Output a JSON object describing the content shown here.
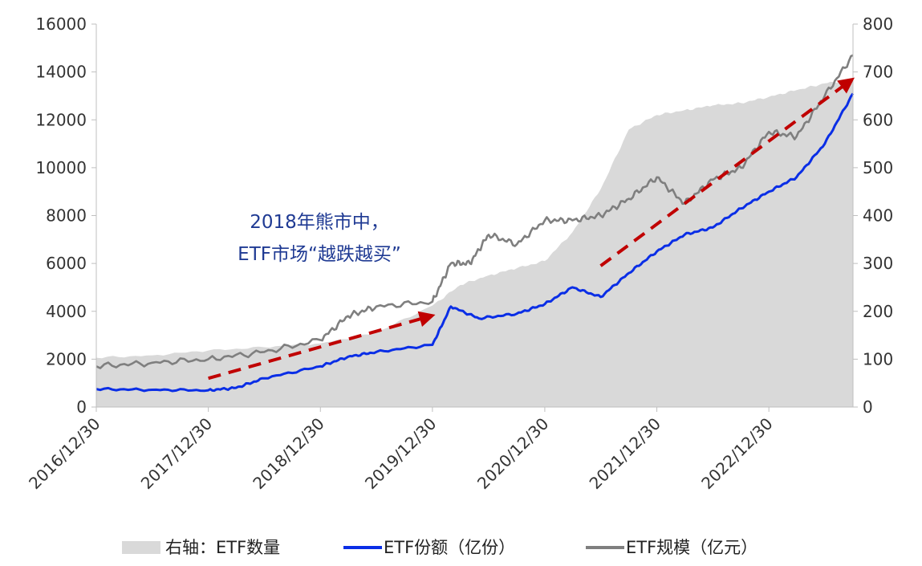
{
  "chart_data": {
    "type": "line",
    "title": "",
    "x_range": [
      "2016-12-30",
      "2023-09-30"
    ],
    "x_ticks": [
      "2016/12/30",
      "2017/12/30",
      "2018/12/30",
      "2019/12/30",
      "2020/12/30",
      "2021/12/30",
      "2022/12/30"
    ],
    "y_left": {
      "ticks": [
        0,
        2000,
        4000,
        6000,
        8000,
        10000,
        12000,
        14000,
        16000
      ],
      "range": [
        0,
        16000
      ]
    },
    "y_right": {
      "ticks": [
        0,
        100,
        200,
        300,
        400,
        500,
        600,
        700,
        800
      ],
      "range": [
        0,
        800
      ]
    },
    "grid": false,
    "legend_position": "bottom",
    "series": [
      {
        "name": "右轴：ETF数量",
        "kind": "area",
        "axis": "right",
        "color": "#d9d9d9",
        "points": [
          [
            "2016-12-30",
            103
          ],
          [
            "2017-06-30",
            108
          ],
          [
            "2017-12-30",
            118
          ],
          [
            "2018-06-30",
            125
          ],
          [
            "2018-12-30",
            133
          ],
          [
            "2019-06-30",
            155
          ],
          [
            "2019-12-30",
            212
          ],
          [
            "2020-03-30",
            255
          ],
          [
            "2020-06-30",
            275
          ],
          [
            "2020-09-30",
            290
          ],
          [
            "2020-12-30",
            305
          ],
          [
            "2021-03-30",
            365
          ],
          [
            "2021-06-30",
            455
          ],
          [
            "2021-09-30",
            580
          ],
          [
            "2021-12-30",
            610
          ],
          [
            "2022-03-30",
            620
          ],
          [
            "2022-06-30",
            630
          ],
          [
            "2022-09-30",
            635
          ],
          [
            "2022-12-30",
            648
          ],
          [
            "2023-03-30",
            662
          ],
          [
            "2023-06-30",
            676
          ],
          [
            "2023-09-30",
            685
          ]
        ]
      },
      {
        "name": "ETF份额（亿份）",
        "kind": "line",
        "axis": "left",
        "color": "#0a2ee6",
        "points": [
          [
            "2016-12-30",
            750
          ],
          [
            "2017-06-30",
            720
          ],
          [
            "2017-12-30",
            700
          ],
          [
            "2018-03-30",
            800
          ],
          [
            "2018-06-30",
            1200
          ],
          [
            "2018-12-30",
            1700
          ],
          [
            "2019-03-30",
            2100
          ],
          [
            "2019-06-30",
            2300
          ],
          [
            "2019-12-30",
            2600
          ],
          [
            "2020-02-28",
            4200
          ],
          [
            "2020-05-30",
            3700
          ],
          [
            "2020-09-30",
            3900
          ],
          [
            "2020-12-30",
            4300
          ],
          [
            "2021-03-30",
            5000
          ],
          [
            "2021-06-30",
            4600
          ],
          [
            "2021-09-30",
            5600
          ],
          [
            "2021-12-30",
            6500
          ],
          [
            "2022-03-30",
            7200
          ],
          [
            "2022-06-30",
            7500
          ],
          [
            "2022-09-30",
            8300
          ],
          [
            "2022-12-30",
            9000
          ],
          [
            "2023-03-30",
            9600
          ],
          [
            "2023-06-30",
            11000
          ],
          [
            "2023-09-30",
            13100
          ]
        ]
      },
      {
        "name": "ETF规模（亿元）",
        "kind": "line",
        "axis": "left",
        "color": "#7f7f7f",
        "points": [
          [
            "2016-12-30",
            1700
          ],
          [
            "2017-06-30",
            1850
          ],
          [
            "2017-12-30",
            2000
          ],
          [
            "2018-06-30",
            2300
          ],
          [
            "2018-12-30",
            2800
          ],
          [
            "2019-03-30",
            3800
          ],
          [
            "2019-06-30",
            4200
          ],
          [
            "2019-12-30",
            4400
          ],
          [
            "2020-02-28",
            6000
          ],
          [
            "2020-04-30",
            6000
          ],
          [
            "2020-06-30",
            7200
          ],
          [
            "2020-09-30",
            6800
          ],
          [
            "2020-12-30",
            7800
          ],
          [
            "2021-03-30",
            7800
          ],
          [
            "2021-06-30",
            8000
          ],
          [
            "2021-09-30",
            8700
          ],
          [
            "2021-12-30",
            9600
          ],
          [
            "2022-03-30",
            8500
          ],
          [
            "2022-06-30",
            9500
          ],
          [
            "2022-09-30",
            10000
          ],
          [
            "2022-12-30",
            11500
          ],
          [
            "2023-03-30",
            11300
          ],
          [
            "2023-06-30",
            13000
          ],
          [
            "2023-09-30",
            14700
          ]
        ]
      }
    ],
    "annotations": [
      {
        "lines": [
          "2018年熊市中，",
          "ETF市场“越跌越买”"
        ]
      }
    ],
    "arrows": [
      {
        "from": [
          "2017-12-30",
          1200
        ],
        "to": [
          "2019-12-30",
          3900
        ],
        "color": "#c00000"
      },
      {
        "from": [
          "2021-06-30",
          5900
        ],
        "to": [
          "2023-09-30",
          13700
        ],
        "color": "#c00000"
      }
    ]
  }
}
